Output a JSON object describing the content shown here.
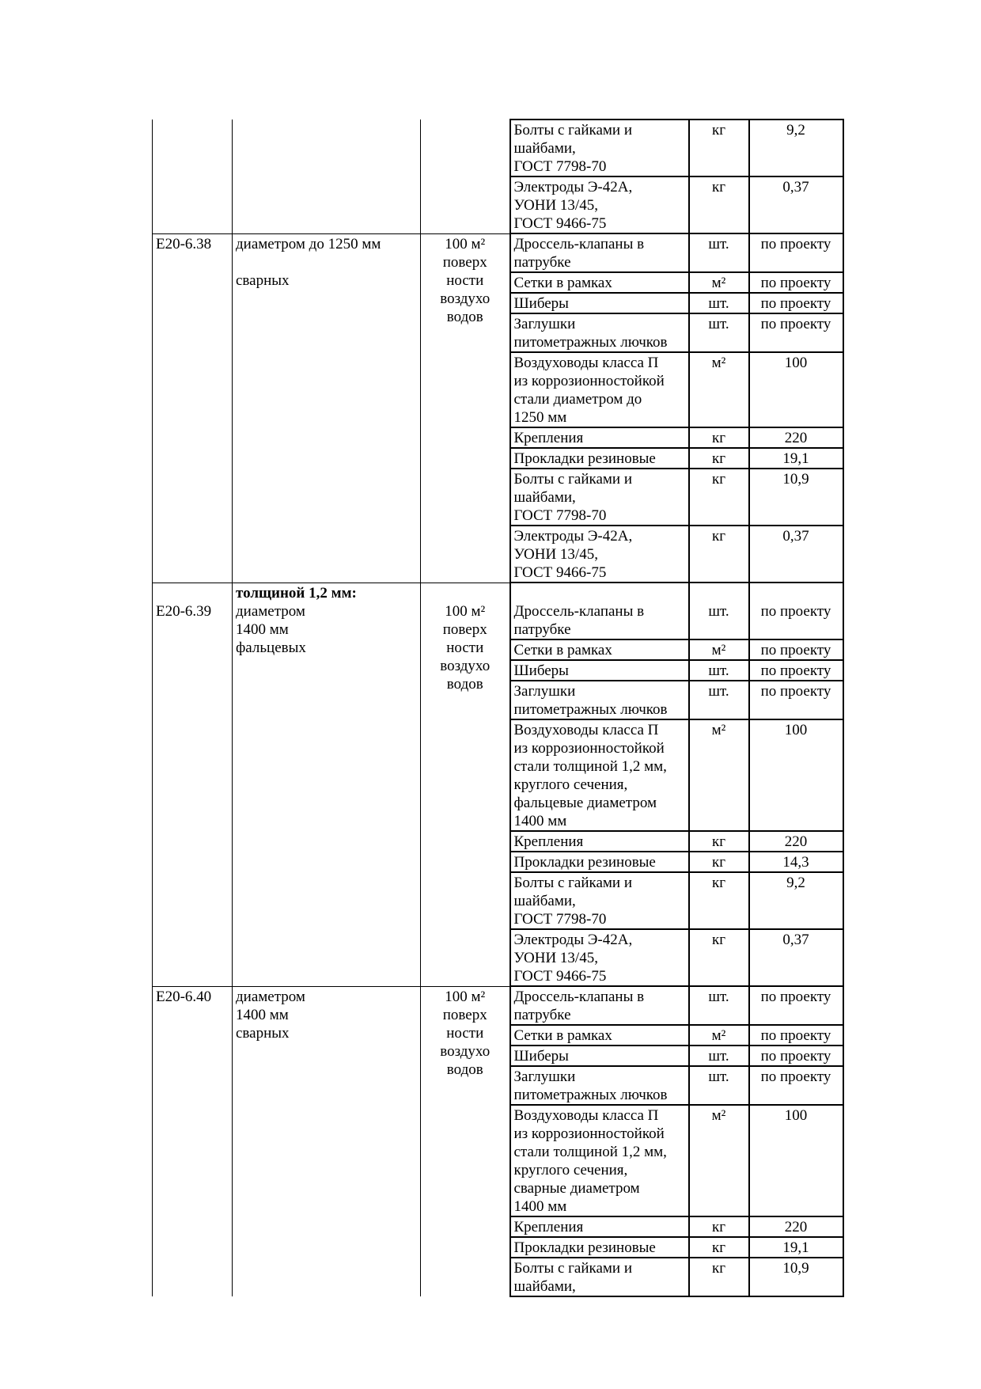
{
  "groups": [
    {
      "code": "",
      "heading": "",
      "description": "",
      "unit": "",
      "resources": [
        {
          "name": "Болты с гайками и\nшайбами,\nГОСТ 7798-70",
          "unit": "кг",
          "qty": "9,2"
        },
        {
          "name": "Электроды Э-42А,\nУОНИ 13/45,\nГОСТ 9466-75",
          "unit": "кг",
          "qty": "0,37"
        }
      ]
    },
    {
      "code": "Е20-6.38",
      "heading": "",
      "description": "диаметром  до 1250 мм\n\nсварных",
      "unit": "100 м²\nповерх\nности\nвоздухо\nводов",
      "resources": [
        {
          "name": "Дроссель-клапаны в\nпатрубке",
          "unit": "шт.",
          "qty": "по проекту"
        },
        {
          "name": "Сетки в рамках",
          "unit": "м²",
          "qty": "по проекту"
        },
        {
          "name": "Шиберы",
          "unit": "шт.",
          "qty": "по проекту"
        },
        {
          "name": "Заглушки\nпитометражных лючков",
          "unit": "шт.",
          "qty": "по проекту"
        },
        {
          "name": "Воздуховоды класса П\nиз коррозионностойкой\nстали диаметром до\n1250 мм",
          "unit": "м²",
          "qty": "100"
        },
        {
          "name": "Крепления",
          "unit": "кг",
          "qty": "220"
        },
        {
          "name": "Прокладки резиновые",
          "unit": "кг",
          "qty": "19,1"
        },
        {
          "name": "Болты с гайками и\nшайбами,\nГОСТ 7798-70",
          "unit": "кг",
          "qty": "10,9"
        },
        {
          "name": "Электроды Э-42А,\nУОНИ 13/45,\nГОСТ 9466-75",
          "unit": "кг",
          "qty": "0,37"
        }
      ]
    },
    {
      "code": "\nЕ20-6.39",
      "heading": "толщиной 1,2 мм:",
      "description": "диаметром\n1400 мм\nфальцевых",
      "unit": "\n100 м²\nповерх\nности\nвоздухо\nводов",
      "resources": [
        {
          "name": "\nДроссель-клапаны в\nпатрубке",
          "unit": "\nшт.",
          "qty": "\nпо проекту"
        },
        {
          "name": "Сетки в рамках",
          "unit": "м²",
          "qty": "по проекту"
        },
        {
          "name": "Шиберы",
          "unit": "шт.",
          "qty": "по проекту"
        },
        {
          "name": "Заглушки\nпитометражных лючков",
          "unit": "шт.",
          "qty": "по проекту"
        },
        {
          "name": "Воздуховоды класса П\nиз коррозионностойкой\nстали толщиной 1,2 мм,\nкруглого сечения,\nфальцевые диаметром\n1400 мм",
          "unit": "м²",
          "qty": "100"
        },
        {
          "name": "Крепления",
          "unit": "кг",
          "qty": "220"
        },
        {
          "name": "Прокладки резиновые",
          "unit": "кг",
          "qty": "14,3"
        },
        {
          "name": "Болты с гайками и\nшайбами,\nГОСТ 7798-70",
          "unit": "кг",
          "qty": "9,2"
        },
        {
          "name": "Электроды Э-42А,\nУОНИ 13/45,\nГОСТ 9466-75",
          "unit": "кг",
          "qty": "0,37"
        }
      ]
    },
    {
      "code": "Е20-6.40",
      "heading": "",
      "description": "диаметром\n1400 мм\nсварных",
      "unit": "100 м²\nповерх\nности\nвоздухо\nводов",
      "resources": [
        {
          "name": "Дроссель-клапаны в\nпатрубке",
          "unit": "шт.",
          "qty": "по проекту"
        },
        {
          "name": "Сетки в рамках",
          "unit": "м²",
          "qty": "по проекту"
        },
        {
          "name": "Шиберы",
          "unit": "шт.",
          "qty": "по проекту"
        },
        {
          "name": "Заглушки\nпитометражных лючков",
          "unit": "шт.",
          "qty": "по проекту"
        },
        {
          "name": "Воздуховоды класса П\nиз коррозионностойкой\nстали толщиной 1,2 мм,\nкруглого сечения,\nсварные диаметром\n1400 мм",
          "unit": "м²",
          "qty": "100"
        },
        {
          "name": "Крепления",
          "unit": "кг",
          "qty": "220"
        },
        {
          "name": "Прокладки резиновые",
          "unit": "кг",
          "qty": "19,1"
        },
        {
          "name": "Болты с гайками и\nшайбами,",
          "unit": "кг",
          "qty": "10,9"
        }
      ]
    }
  ]
}
